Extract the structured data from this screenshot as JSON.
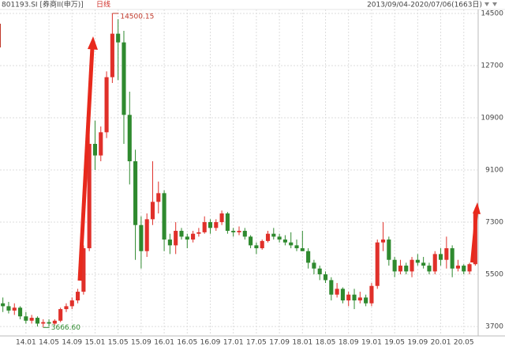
{
  "header": {
    "code_name": "801193.SI [券商II(申万)]",
    "period": "日线",
    "range": "2013/09/04-2020/07/06(1663日)"
  },
  "chart_data": {
    "type": "candlestick",
    "categories": [
      null,
      null,
      null,
      null,
      "14.01",
      null,
      null,
      null,
      "14.05",
      null,
      null,
      null,
      "14.09",
      null,
      null,
      null,
      "15.01",
      null,
      null,
      null,
      "15.05",
      null,
      null,
      null,
      "15.09",
      null,
      null,
      null,
      "16.01",
      null,
      null,
      null,
      "16.05",
      null,
      null,
      null,
      "16.09",
      null,
      null,
      null,
      "17.01",
      null,
      null,
      null,
      "17.05",
      null,
      null,
      null,
      "17.09",
      null,
      null,
      null,
      "18.01",
      null,
      null,
      null,
      "18.05",
      null,
      null,
      null,
      "18.09",
      null,
      null,
      null,
      "19.01",
      null,
      null,
      null,
      "19.05",
      null,
      null,
      null,
      "19.09",
      null,
      null,
      null,
      "20.01",
      null,
      null,
      null,
      "20.05",
      null,
      null
    ],
    "open": [
      4500,
      4400,
      4250,
      4350,
      4050,
      3900,
      4000,
      3800,
      3850,
      3800,
      3900,
      4300,
      4400,
      4600,
      4900,
      6400,
      10000,
      9600,
      10400,
      12300,
      13800,
      13500,
      11000,
      9400,
      7200,
      6300,
      7400,
      8000,
      8300,
      6700,
      6500,
      7000,
      6800,
      6700,
      6900,
      6950,
      7300,
      7100,
      7300,
      7600,
      7000,
      6950,
      7000,
      6800,
      6500,
      6400,
      6650,
      6900,
      6800,
      6700,
      6600,
      6500,
      6400,
      6300,
      5900,
      5700,
      5500,
      5300,
      4800,
      5000,
      4600,
      4800,
      4600,
      4700,
      4500,
      5100,
      6600,
      6700,
      6000,
      5600,
      5800,
      5600,
      6000,
      5900,
      5800,
      5600,
      6200,
      6000,
      6400,
      5700,
      5800,
      5600,
      5850
    ],
    "high": [
      4700,
      4550,
      4500,
      4400,
      4200,
      4100,
      4050,
      3950,
      3950,
      3950,
      4350,
      4500,
      4700,
      5000,
      6500,
      10500,
      10800,
      10600,
      12500,
      14500.15,
      14300,
      13900,
      11800,
      9800,
      7500,
      7600,
      9400,
      8700,
      8400,
      6900,
      7300,
      7100,
      6900,
      7000,
      7100,
      7500,
      7400,
      7400,
      7700,
      7650,
      7100,
      7150,
      7100,
      6850,
      6600,
      6700,
      7000,
      7100,
      6900,
      6850,
      6950,
      6700,
      7000,
      6400,
      6000,
      5800,
      5600,
      5400,
      5200,
      5050,
      4900,
      5000,
      4900,
      4800,
      5200,
      6700,
      7300,
      6800,
      6100,
      6000,
      5900,
      6100,
      6200,
      6100,
      5900,
      6300,
      6400,
      6800,
      6500,
      6000,
      5850,
      5900,
      7800
    ],
    "low": [
      4200,
      4150,
      4100,
      3950,
      3800,
      3800,
      3700,
      3666.6,
      3700,
      3750,
      3850,
      4200,
      4300,
      4500,
      4800,
      6300,
      9100,
      9400,
      10200,
      12100,
      12200,
      10000,
      8600,
      6000,
      5700,
      6100,
      7200,
      7600,
      6300,
      6200,
      6200,
      6700,
      6400,
      6600,
      6800,
      6900,
      6900,
      7000,
      7200,
      6900,
      6800,
      6850,
      6700,
      6400,
      6200,
      6350,
      6600,
      6700,
      6600,
      6500,
      6400,
      6300,
      6300,
      5700,
      5500,
      5300,
      5200,
      4600,
      4700,
      4500,
      4400,
      4300,
      4500,
      4400,
      4400,
      5000,
      6300,
      5800,
      5400,
      5500,
      5500,
      5400,
      5800,
      5700,
      5500,
      5500,
      5800,
      5700,
      5400,
      5600,
      5500,
      5500,
      5800
    ],
    "close": [
      4400,
      4250,
      4350,
      4050,
      3900,
      4000,
      3800,
      3850,
      3800,
      3900,
      4300,
      4400,
      4600,
      4900,
      6400,
      10000,
      9600,
      10400,
      12300,
      13800,
      13500,
      11000,
      9400,
      7200,
      6300,
      7400,
      8000,
      8300,
      6700,
      6500,
      7000,
      6800,
      6700,
      6900,
      6950,
      7300,
      7100,
      7300,
      7600,
      7000,
      6950,
      7000,
      6800,
      6500,
      6400,
      6650,
      6900,
      6800,
      6700,
      6600,
      6500,
      6400,
      6300,
      5900,
      5700,
      5500,
      5300,
      4800,
      5000,
      4600,
      4800,
      4600,
      4700,
      4500,
      5100,
      6600,
      6700,
      6000,
      5600,
      5800,
      5600,
      6000,
      5900,
      5800,
      5600,
      6200,
      6000,
      6400,
      5700,
      5800,
      5600,
      5850,
      7600
    ],
    "up_color": "#e0302a",
    "down_color": "#2f8a2f",
    "ylim": [
      3375,
      14635
    ],
    "yticks": [
      3700,
      5500,
      7300,
      9100,
      10900,
      12700,
      14500
    ],
    "grid": true,
    "annotations": [
      {
        "text": "14500.15",
        "value": 14500.15,
        "color": "#c0392b"
      },
      {
        "text": "3666.60",
        "value": 3666.6,
        "color": "#2f8a2f"
      }
    ]
  }
}
